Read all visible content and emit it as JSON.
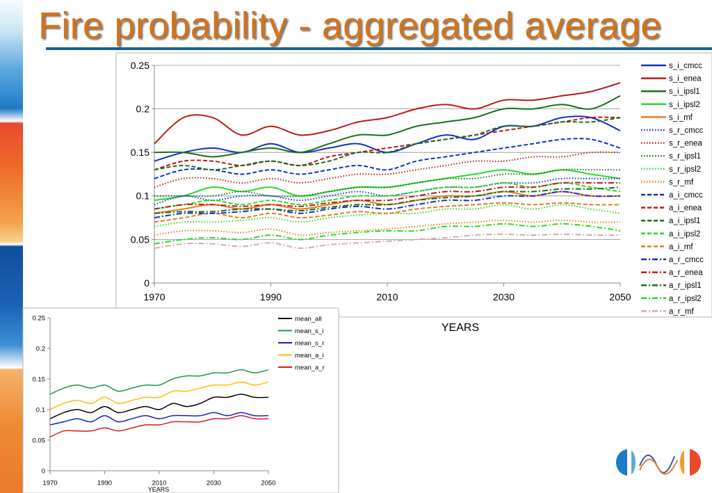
{
  "title": "Fire probability - aggregated average",
  "colors": {
    "title": "#d4731a",
    "rule": "#1a5f9e"
  },
  "chart_data": [
    {
      "type": "line",
      "xlabel": "YEARS",
      "xlim": [
        1970,
        2050
      ],
      "ylim": [
        0,
        0.25
      ],
      "x_ticks": [
        1970,
        1990,
        2010,
        2030,
        2050
      ],
      "y_ticks": [
        0,
        0.05,
        0.1,
        0.15,
        0.2,
        0.25
      ],
      "y_tick_labels": [
        "0",
        "0.05",
        "0.1",
        "0.15",
        "0.2",
        "0.25"
      ],
      "grid": "horizontal",
      "legend_position": "right",
      "x": [
        1970,
        1975,
        1980,
        1985,
        1990,
        1995,
        2000,
        2005,
        2010,
        2015,
        2020,
        2025,
        2030,
        2035,
        2040,
        2045,
        2050
      ],
      "series": [
        {
          "name": "s_i_cmcc",
          "color": "#1030c8",
          "style": "solid",
          "values": [
            0.14,
            0.15,
            0.155,
            0.15,
            0.16,
            0.15,
            0.155,
            0.16,
            0.15,
            0.16,
            0.17,
            0.165,
            0.18,
            0.18,
            0.19,
            0.19,
            0.175
          ]
        },
        {
          "name": "s_i_enea",
          "color": "#c01818",
          "style": "solid",
          "values": [
            0.16,
            0.19,
            0.19,
            0.17,
            0.18,
            0.17,
            0.175,
            0.185,
            0.19,
            0.2,
            0.205,
            0.2,
            0.21,
            0.21,
            0.215,
            0.22,
            0.23
          ]
        },
        {
          "name": "s_i_ipsl1",
          "color": "#1a6e1a",
          "style": "solid",
          "values": [
            0.15,
            0.15,
            0.145,
            0.15,
            0.155,
            0.15,
            0.16,
            0.17,
            0.17,
            0.18,
            0.185,
            0.19,
            0.2,
            0.2,
            0.205,
            0.2,
            0.215
          ]
        },
        {
          "name": "s_i_ipsl2",
          "color": "#22dd22",
          "style": "solid",
          "values": [
            0.095,
            0.1,
            0.11,
            0.105,
            0.11,
            0.1,
            0.105,
            0.11,
            0.11,
            0.115,
            0.12,
            0.125,
            0.13,
            0.125,
            0.13,
            0.125,
            0.12
          ]
        },
        {
          "name": "s_i_mf",
          "color": "#e87a1c",
          "style": "solid",
          "values": [
            0.08,
            0.085,
            0.09,
            0.085,
            0.09,
            0.085,
            0.09,
            0.095,
            0.09,
            0.095,
            0.1,
            0.1,
            0.105,
            0.1,
            0.105,
            0.1,
            0.1
          ]
        },
        {
          "name": "s_r_cmcc",
          "color": "#1030c8",
          "style": "dotted",
          "values": [
            0.09,
            0.1,
            0.095,
            0.1,
            0.1,
            0.095,
            0.1,
            0.105,
            0.1,
            0.105,
            0.11,
            0.11,
            0.115,
            0.115,
            0.12,
            0.12,
            0.12
          ]
        },
        {
          "name": "s_r_enea",
          "color": "#c01818",
          "style": "dotted",
          "values": [
            0.11,
            0.12,
            0.12,
            0.115,
            0.12,
            0.115,
            0.12,
            0.125,
            0.125,
            0.13,
            0.135,
            0.14,
            0.14,
            0.145,
            0.145,
            0.15,
            0.15
          ]
        },
        {
          "name": "s_r_ipsl1",
          "color": "#1a6e1a",
          "style": "dotted",
          "values": [
            0.1,
            0.1,
            0.1,
            0.105,
            0.1,
            0.1,
            0.105,
            0.11,
            0.11,
            0.115,
            0.12,
            0.12,
            0.125,
            0.125,
            0.13,
            0.13,
            0.13
          ]
        },
        {
          "name": "s_r_ipsl2",
          "color": "#22dd22",
          "style": "dotted",
          "values": [
            0.065,
            0.07,
            0.07,
            0.072,
            0.075,
            0.07,
            0.075,
            0.078,
            0.08,
            0.08,
            0.085,
            0.085,
            0.09,
            0.085,
            0.09,
            0.085,
            0.08
          ]
        },
        {
          "name": "s_r_mf",
          "color": "#e87a1c",
          "style": "dotted",
          "values": [
            0.055,
            0.06,
            0.06,
            0.058,
            0.062,
            0.055,
            0.058,
            0.06,
            0.062,
            0.065,
            0.068,
            0.07,
            0.072,
            0.07,
            0.072,
            0.07,
            0.07
          ]
        },
        {
          "name": "a_i_cmcc",
          "color": "#1030c8",
          "style": "dashed",
          "values": [
            0.12,
            0.13,
            0.13,
            0.125,
            0.13,
            0.125,
            0.13,
            0.135,
            0.13,
            0.14,
            0.145,
            0.15,
            0.155,
            0.16,
            0.165,
            0.165,
            0.155
          ]
        },
        {
          "name": "a_i_enea",
          "color": "#c01818",
          "style": "dashed",
          "values": [
            0.13,
            0.14,
            0.14,
            0.135,
            0.14,
            0.135,
            0.145,
            0.15,
            0.155,
            0.16,
            0.165,
            0.17,
            0.175,
            0.18,
            0.185,
            0.19,
            0.19
          ]
        },
        {
          "name": "a_i_ipsl1",
          "color": "#1a6e1a",
          "style": "dashed",
          "values": [
            0.13,
            0.135,
            0.13,
            0.135,
            0.14,
            0.135,
            0.14,
            0.15,
            0.15,
            0.16,
            0.165,
            0.17,
            0.18,
            0.18,
            0.185,
            0.185,
            0.19
          ]
        },
        {
          "name": "a_i_ipsl2",
          "color": "#22dd22",
          "style": "dashed",
          "values": [
            0.085,
            0.09,
            0.095,
            0.09,
            0.095,
            0.09,
            0.095,
            0.1,
            0.1,
            0.105,
            0.11,
            0.11,
            0.115,
            0.11,
            0.115,
            0.11,
            0.105
          ]
        },
        {
          "name": "a_i_mf",
          "color": "#e87a1c",
          "style": "dashed",
          "values": [
            0.07,
            0.075,
            0.08,
            0.075,
            0.08,
            0.075,
            0.078,
            0.082,
            0.08,
            0.085,
            0.088,
            0.09,
            0.092,
            0.09,
            0.092,
            0.09,
            0.09
          ]
        },
        {
          "name": "a_r_cmcc",
          "color": "#1030c8",
          "style": "dashdot",
          "values": [
            0.075,
            0.08,
            0.08,
            0.082,
            0.085,
            0.08,
            0.085,
            0.088,
            0.085,
            0.09,
            0.095,
            0.095,
            0.1,
            0.1,
            0.105,
            0.1,
            0.1
          ]
        },
        {
          "name": "a_r_enea",
          "color": "#c01818",
          "style": "dashdot",
          "values": [
            0.085,
            0.09,
            0.09,
            0.088,
            0.09,
            0.088,
            0.092,
            0.095,
            0.095,
            0.1,
            0.105,
            0.105,
            0.11,
            0.11,
            0.115,
            0.115,
            0.115
          ]
        },
        {
          "name": "a_r_ipsl1",
          "color": "#1a6e1a",
          "style": "dashdot",
          "values": [
            0.08,
            0.082,
            0.082,
            0.085,
            0.085,
            0.083,
            0.087,
            0.09,
            0.09,
            0.095,
            0.098,
            0.1,
            0.105,
            0.105,
            0.108,
            0.108,
            0.11
          ]
        },
        {
          "name": "a_r_ipsl2",
          "color": "#22dd22",
          "style": "dashdot",
          "values": [
            0.045,
            0.05,
            0.052,
            0.05,
            0.055,
            0.05,
            0.055,
            0.058,
            0.06,
            0.06,
            0.065,
            0.065,
            0.068,
            0.065,
            0.068,
            0.065,
            0.06
          ]
        },
        {
          "name": "a_r_mf",
          "color": "#d8a8b0",
          "style": "dashdot",
          "values": [
            0.04,
            0.045,
            0.045,
            0.042,
            0.046,
            0.04,
            0.044,
            0.046,
            0.048,
            0.05,
            0.052,
            0.055,
            0.056,
            0.055,
            0.056,
            0.055,
            0.055
          ]
        }
      ]
    },
    {
      "type": "line",
      "xlabel": "YEARS",
      "xlim": [
        1970,
        2050
      ],
      "ylim": [
        0,
        0.25
      ],
      "x_ticks": [
        1970,
        1990,
        2010,
        2030,
        2050
      ],
      "y_ticks": [
        0,
        0.05,
        0.1,
        0.15,
        0.2,
        0.25
      ],
      "y_tick_labels": [
        "0",
        "0.05",
        "0.1",
        "0.15",
        "0.2",
        "0.25"
      ],
      "grid": "none",
      "legend_position": "top-right",
      "x": [
        1970,
        1975,
        1980,
        1985,
        1990,
        1995,
        2000,
        2005,
        2010,
        2015,
        2020,
        2025,
        2030,
        2035,
        2040,
        2045,
        2050
      ],
      "series": [
        {
          "name": "mean_all",
          "color": "#000000",
          "values": [
            0.085,
            0.095,
            0.1,
            0.095,
            0.105,
            0.095,
            0.1,
            0.105,
            0.1,
            0.11,
            0.105,
            0.11,
            0.12,
            0.12,
            0.125,
            0.12,
            0.12
          ]
        },
        {
          "name": "mean_s_i",
          "color": "#1a9a4a",
          "values": [
            0.125,
            0.135,
            0.14,
            0.135,
            0.14,
            0.13,
            0.135,
            0.14,
            0.14,
            0.15,
            0.155,
            0.155,
            0.16,
            0.16,
            0.165,
            0.16,
            0.165
          ]
        },
        {
          "name": "mean_s_r",
          "color": "#1a1acc",
          "values": [
            0.075,
            0.08,
            0.085,
            0.08,
            0.09,
            0.08,
            0.085,
            0.09,
            0.085,
            0.09,
            0.09,
            0.09,
            0.095,
            0.09,
            0.095,
            0.09,
            0.09
          ]
        },
        {
          "name": "mean_a_i",
          "color": "#ffc000",
          "values": [
            0.1,
            0.11,
            0.115,
            0.11,
            0.12,
            0.11,
            0.115,
            0.12,
            0.12,
            0.13,
            0.13,
            0.135,
            0.14,
            0.14,
            0.145,
            0.14,
            0.145
          ]
        },
        {
          "name": "mean_a_r",
          "color": "#e01818",
          "values": [
            0.055,
            0.065,
            0.065,
            0.065,
            0.07,
            0.065,
            0.07,
            0.075,
            0.075,
            0.08,
            0.08,
            0.08,
            0.085,
            0.085,
            0.09,
            0.085,
            0.085
          ]
        }
      ]
    }
  ]
}
